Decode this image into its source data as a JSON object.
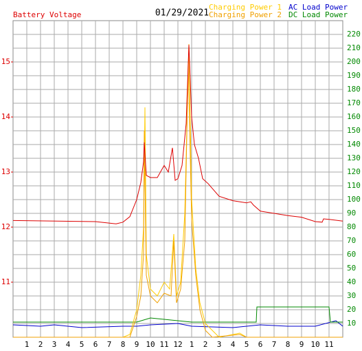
{
  "chart_data": {
    "type": "line",
    "title": "01/29/2021",
    "xlim": [
      0,
      24
    ],
    "xticks": [
      1,
      2,
      3,
      4,
      5,
      6,
      7,
      8,
      9,
      10,
      11,
      12,
      {
        "value": 13,
        "label": "1"
      },
      {
        "value": 14,
        "label": "2"
      },
      {
        "value": 15,
        "label": "3"
      },
      {
        "value": 16,
        "label": "4"
      },
      {
        "value": 17,
        "label": "5"
      },
      {
        "value": 18,
        "label": "6"
      },
      {
        "value": 19,
        "label": "7"
      },
      {
        "value": 20,
        "label": "8"
      },
      {
        "value": 21,
        "label": "9"
      },
      {
        "value": 22,
        "label": "10"
      },
      {
        "value": 23,
        "label": "11"
      }
    ],
    "ylim": [
      10,
      15.75
    ],
    "yticks": [
      11,
      12,
      13,
      14,
      15
    ],
    "y2lim": [
      0,
      230
    ],
    "y2ticks": [
      10,
      20,
      30,
      40,
      50,
      60,
      70,
      80,
      90,
      100,
      110,
      120,
      130,
      140,
      150,
      160,
      170,
      180,
      190,
      200,
      210,
      220
    ],
    "grid": true,
    "series": [
      {
        "name": "Battery Voltage",
        "color": "#dd0000",
        "axis": "y",
        "x": [
          0,
          6,
          7.5,
          8,
          8.5,
          9,
          9.3,
          9.5,
          9.55,
          9.7,
          10,
          10.5,
          11,
          11.3,
          11.6,
          11.8,
          12,
          12.3,
          12.6,
          12.8,
          13,
          13.2,
          13.5,
          13.8,
          14.2,
          15,
          16,
          17,
          17.3,
          17.5,
          18,
          19,
          20,
          21,
          22,
          22.5,
          22.6,
          23,
          24
        ],
        "values": [
          12.12,
          12.1,
          12.06,
          12.09,
          12.19,
          12.5,
          12.81,
          13.19,
          13.54,
          12.94,
          12.9,
          12.9,
          13.12,
          13.0,
          13.44,
          12.85,
          12.88,
          13.12,
          13.88,
          15.31,
          14.0,
          13.5,
          13.25,
          12.88,
          12.79,
          12.56,
          12.48,
          12.44,
          12.46,
          12.4,
          12.29,
          12.25,
          12.21,
          12.18,
          12.1,
          12.09,
          12.15,
          12.14,
          12.11
        ]
      },
      {
        "name": "Charging Power 1",
        "color": "#ffcc00",
        "axis": "y2",
        "x": [
          0,
          8,
          8.5,
          9,
          9.3,
          9.5,
          9.6,
          9.7,
          10,
          10.5,
          11,
          11.4,
          11.7,
          11.9,
          12.2,
          12.5,
          12.8,
          13,
          13.3,
          13.6,
          14,
          14.5,
          15,
          16.5,
          17,
          24
        ],
        "values": [
          0,
          0,
          2,
          20,
          45,
          80,
          167,
          60,
          35,
          30,
          40,
          35,
          75,
          30,
          40,
          90,
          213,
          100,
          50,
          25,
          10,
          5,
          0,
          3,
          0,
          0
        ]
      },
      {
        "name": "Charging Power 2",
        "color": "#f0a000",
        "axis": "y2",
        "x": [
          0,
          8.5,
          9,
          9.3,
          9.5,
          9.55,
          9.7,
          10,
          10.5,
          11,
          11.5,
          11.7,
          11.9,
          12.2,
          12.5,
          12.75,
          13,
          13.3,
          13.6,
          14,
          14.5,
          16.5,
          17,
          24
        ],
        "values": [
          0,
          0,
          15,
          30,
          60,
          150,
          45,
          30,
          25,
          32,
          30,
          70,
          25,
          35,
          70,
          200,
          85,
          45,
          20,
          5,
          0,
          2,
          0,
          0
        ]
      },
      {
        "name": "AC Load Power",
        "color": "#0000cc",
        "axis": "y2",
        "x": [
          0,
          2,
          3,
          5,
          8,
          9,
          10,
          12,
          13,
          16,
          18,
          20,
          22,
          23.5,
          24
        ],
        "values": [
          9,
          8,
          9,
          7,
          8,
          8,
          9,
          10,
          8,
          7,
          9,
          8,
          8,
          12,
          8
        ]
      },
      {
        "name": "DC Load Power",
        "color": "#008800",
        "axis": "y2",
        "x": [
          0,
          9,
          10,
          11,
          13,
          17.7,
          17.75,
          23,
          23.1,
          24
        ],
        "values": [
          11,
          11,
          14,
          13,
          11,
          11,
          22,
          22,
          11,
          11
        ]
      }
    ]
  }
}
